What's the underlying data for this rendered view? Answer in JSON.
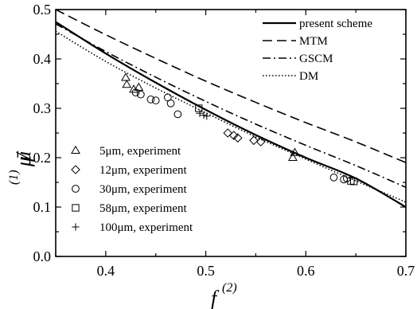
{
  "chart_data": {
    "type": "line",
    "title": "",
    "xlabel": {
      "base": "f",
      "sup": "(2)"
    },
    "ylabel": {
      "base": "μ",
      "bar": "μ̄",
      "sup": "(1)"
    },
    "xlim": [
      0.35,
      0.7
    ],
    "ylim": [
      0.0,
      0.5
    ],
    "xticks": [
      0.4,
      0.5,
      0.6,
      0.7
    ],
    "xtick_labels": [
      "0.4",
      "0.5",
      "0.6",
      "0.7"
    ],
    "yticks": [
      0.0,
      0.1,
      0.2,
      0.3,
      0.4,
      0.5
    ],
    "ytick_labels": [
      "0.0",
      "0.1",
      "0.2",
      "0.3",
      "0.4",
      "0.5"
    ],
    "grid": false,
    "legend_lines_position": "top-right",
    "legend_markers_position": "bottom-left",
    "series": [
      {
        "name": "present scheme",
        "style": "solid",
        "x": [
          0.35,
          0.4,
          0.45,
          0.5,
          0.55,
          0.6,
          0.65,
          0.7
        ],
        "y": [
          0.475,
          0.411,
          0.352,
          0.297,
          0.246,
          0.2,
          0.158,
          0.1
        ]
      },
      {
        "name": "MTM",
        "style": "dashed",
        "x": [
          0.35,
          0.4,
          0.45,
          0.5,
          0.55,
          0.6,
          0.65,
          0.7
        ],
        "y": [
          0.5,
          0.449,
          0.401,
          0.355,
          0.312,
          0.271,
          0.232,
          0.19
        ]
      },
      {
        "name": "GSCM",
        "style": "dashdot",
        "x": [
          0.35,
          0.4,
          0.45,
          0.5,
          0.55,
          0.6,
          0.65,
          0.7
        ],
        "y": [
          0.471,
          0.415,
          0.363,
          0.314,
          0.268,
          0.225,
          0.184,
          0.14
        ]
      },
      {
        "name": "DM",
        "style": "dotted",
        "x": [
          0.35,
          0.4,
          0.45,
          0.5,
          0.55,
          0.6,
          0.65,
          0.7
        ],
        "y": [
          0.456,
          0.395,
          0.341,
          0.291,
          0.242,
          0.197,
          0.153,
          0.11
        ]
      }
    ],
    "scatter": [
      {
        "name": "5μm,   experiment",
        "marker": "triangle",
        "x": [
          0.42,
          0.421,
          0.428,
          0.433,
          0.587,
          0.589
        ],
        "y": [
          0.362,
          0.348,
          0.338,
          0.342,
          0.2,
          0.21
        ]
      },
      {
        "name": "12μm, experiment",
        "marker": "diamond",
        "x": [
          0.522,
          0.528,
          0.532,
          0.548,
          0.555
        ],
        "y": [
          0.25,
          0.245,
          0.24,
          0.235,
          0.232
        ]
      },
      {
        "name": "30μm, experiment",
        "marker": "circle",
        "x": [
          0.43,
          0.435,
          0.445,
          0.45,
          0.462,
          0.465,
          0.472,
          0.628,
          0.638,
          0.641
        ],
        "y": [
          0.332,
          0.328,
          0.318,
          0.316,
          0.322,
          0.31,
          0.288,
          0.16,
          0.156,
          0.158
        ]
      },
      {
        "name": "58μm, experiment",
        "marker": "square",
        "x": [
          0.493,
          0.645,
          0.648
        ],
        "y": [
          0.3,
          0.153,
          0.152
        ]
      },
      {
        "name": "100μm, experiment",
        "marker": "plus",
        "x": [
          0.494,
          0.498,
          0.501
        ],
        "y": [
          0.29,
          0.286,
          0.284
        ]
      }
    ]
  }
}
